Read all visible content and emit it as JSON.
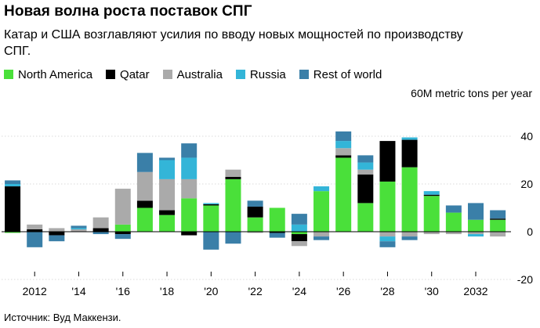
{
  "title": "Новая волна роста поставок СПГ",
  "subtitle": "Катар и США возглавляют усилия по вводу новых мощностей по производству СПГ.",
  "unit_label": "60M metric tons per year",
  "source": "Источник: Вуд Маккензи.",
  "chart_data": {
    "type": "bar",
    "stacked": true,
    "title": "Новая волна роста поставок СПГ",
    "ylabel": "60M metric tons per year",
    "ylim": [
      -22,
      60
    ],
    "yticks": [
      40,
      20,
      0,
      -20
    ],
    "ytick_labels": [
      "40",
      "20",
      "0",
      "-20"
    ],
    "xtick_labels": [
      {
        "year": 2012,
        "label": "2012"
      },
      {
        "year": 2014,
        "label": "'14"
      },
      {
        "year": 2016,
        "label": "'16"
      },
      {
        "year": 2018,
        "label": "'18"
      },
      {
        "year": 2020,
        "label": "'20"
      },
      {
        "year": 2022,
        "label": "'22"
      },
      {
        "year": 2024,
        "label": "'24"
      },
      {
        "year": 2026,
        "label": "'26"
      },
      {
        "year": 2028,
        "label": "'28"
      },
      {
        "year": 2030,
        "label": "'30"
      },
      {
        "year": 2032,
        "label": "2032"
      }
    ],
    "categories": [
      2011,
      2012,
      2013,
      2014,
      2015,
      2016,
      2017,
      2018,
      2019,
      2020,
      2021,
      2022,
      2023,
      2024,
      2025,
      2026,
      2027,
      2028,
      2029,
      2030,
      2031,
      2032,
      2033
    ],
    "series": [
      {
        "name": "North America",
        "color": "#4ae03a",
        "values": [
          -0.5,
          0,
          0,
          0,
          0,
          3,
          10,
          7,
          14,
          11,
          22,
          6,
          10,
          -1,
          17,
          31,
          12,
          21,
          27,
          15,
          8,
          5,
          5
        ]
      },
      {
        "name": "Qatar",
        "color": "#000000",
        "values": [
          19,
          1,
          -1.5,
          0,
          1.5,
          -1,
          3,
          2,
          -1.5,
          0.5,
          1,
          4.5,
          -0.5,
          -3,
          0,
          1,
          12,
          17,
          11.5,
          0.5,
          0,
          0,
          0.5
        ]
      },
      {
        "name": "Australia",
        "color": "#aaaaaa",
        "values": [
          0,
          2,
          1.5,
          1,
          4.5,
          15,
          12,
          13,
          8,
          0,
          3,
          -0.5,
          0,
          -2,
          -2,
          3,
          2,
          -2,
          -2,
          -1,
          -1,
          -1,
          -2
        ]
      },
      {
        "name": "Russia",
        "color": "#33b5d8",
        "values": [
          1,
          0,
          0,
          0.5,
          0,
          0,
          0,
          8,
          9,
          0.5,
          0,
          0,
          0,
          3,
          2,
          3,
          3,
          -2,
          1,
          1.5,
          0,
          -1,
          0
        ]
      },
      {
        "name": "Rest of world",
        "color": "#3a7fa8",
        "values": [
          1.5,
          -6.5,
          -2.5,
          1,
          -1,
          -2,
          8,
          1,
          6,
          -7.5,
          -5,
          2.5,
          -2,
          4.5,
          -1.5,
          4,
          3,
          -2.5,
          -1.5,
          0,
          3,
          7,
          3.5
        ]
      }
    ]
  }
}
